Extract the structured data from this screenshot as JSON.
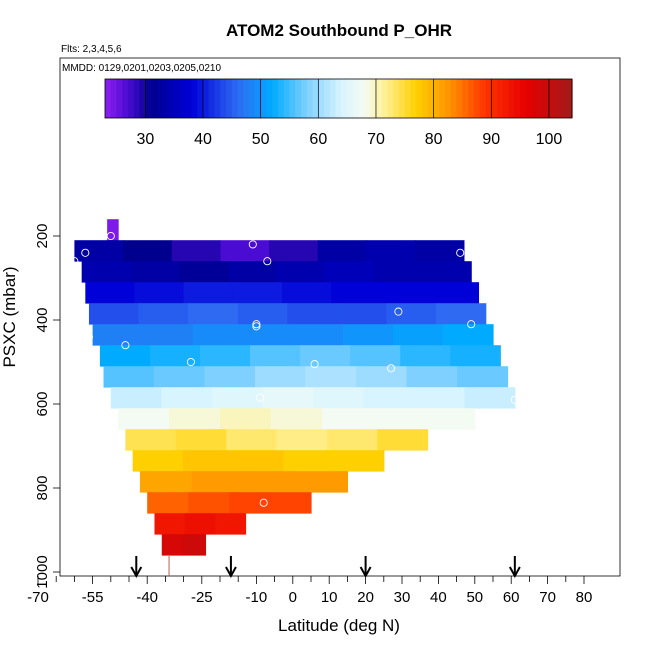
{
  "chart_data": {
    "type": "heatmap",
    "title": "ATOM2 Southbound P_OHR",
    "flights_note": "Flts: 2,3,4,5,6",
    "dates_note": "MMDD: 0129,0201,0203,0205,0210",
    "xlabel": "Latitude (deg N)",
    "ylabel": "PSXC (mbar)",
    "xlim": [
      -70,
      80
    ],
    "ylim": [
      1000,
      150
    ],
    "y_reversed": true,
    "x_ticks": [
      -70,
      -55,
      -40,
      -25,
      -10,
      0,
      10,
      20,
      30,
      40,
      50,
      60,
      70,
      80
    ],
    "x_tick_labels": [
      "-70",
      "-55",
      "-40",
      "-25",
      "-10",
      "0",
      "10",
      "20",
      "30",
      "40",
      "50",
      "60",
      "70",
      "80"
    ],
    "y_ticks": [
      200,
      400,
      600,
      800,
      1000
    ],
    "y_tick_labels": [
      "200",
      "400",
      "600",
      "800",
      "1000"
    ],
    "colorbar": {
      "range": [
        23,
        104
      ],
      "ticks": [
        30,
        40,
        50,
        60,
        70,
        80,
        90,
        100
      ],
      "tick_labels": [
        "30",
        "40",
        "50",
        "60",
        "70",
        "80",
        "90",
        "100"
      ],
      "stops": [
        {
          "v": 23,
          "c": "#8f1ff0"
        },
        {
          "v": 27,
          "c": "#4a0cd2"
        },
        {
          "v": 31,
          "c": "#00008f"
        },
        {
          "v": 38,
          "c": "#0000d8"
        },
        {
          "v": 46,
          "c": "#2e6bf2"
        },
        {
          "v": 52,
          "c": "#00aaff"
        },
        {
          "v": 58,
          "c": "#7fd0ff"
        },
        {
          "v": 64,
          "c": "#d8f4ff"
        },
        {
          "v": 68,
          "c": "#f4fbf2"
        },
        {
          "v": 72,
          "c": "#ffee88"
        },
        {
          "v": 77,
          "c": "#ffd000"
        },
        {
          "v": 83,
          "c": "#ff9000"
        },
        {
          "v": 89,
          "c": "#ff3300"
        },
        {
          "v": 96,
          "c": "#e60000"
        },
        {
          "v": 104,
          "c": "#a31a1a"
        }
      ]
    },
    "bands": [
      {
        "p_top": 160,
        "p_bot": 210,
        "lat_min": -51,
        "lat_max": -48,
        "values": [
          24
        ]
      },
      {
        "p_top": 210,
        "p_bot": 260,
        "lat_min": -60,
        "lat_max": 47,
        "values": [
          33,
          31,
          29,
          27,
          29,
          33,
          34,
          33
        ]
      },
      {
        "p_top": 260,
        "p_bot": 310,
        "lat_min": -58,
        "lat_max": 49,
        "values": [
          34,
          33,
          32,
          33,
          34,
          35,
          34,
          34
        ]
      },
      {
        "p_top": 310,
        "p_bot": 360,
        "lat_min": -57,
        "lat_max": 51,
        "values": [
          38,
          39,
          40,
          40,
          39,
          38,
          38,
          38
        ]
      },
      {
        "p_top": 360,
        "p_bot": 410,
        "lat_min": -56,
        "lat_max": 53,
        "values": [
          44,
          45,
          46,
          45,
          44,
          44,
          45,
          46
        ]
      },
      {
        "p_top": 410,
        "p_bot": 460,
        "lat_min": -55,
        "lat_max": 55,
        "values": [
          48,
          48,
          49,
          49,
          49,
          50,
          51,
          52
        ]
      },
      {
        "p_top": 460,
        "p_bot": 510,
        "lat_min": -53,
        "lat_max": 57,
        "values": [
          52,
          53,
          54,
          56,
          57,
          56,
          54,
          53
        ]
      },
      {
        "p_top": 510,
        "p_bot": 560,
        "lat_min": -52,
        "lat_max": 59,
        "values": [
          56,
          57,
          58,
          60,
          61,
          60,
          58,
          57
        ]
      },
      {
        "p_top": 560,
        "p_bot": 610,
        "lat_min": -50,
        "lat_max": 61,
        "values": [
          63,
          64,
          65,
          66,
          65,
          64,
          64,
          63
        ]
      },
      {
        "p_top": 610,
        "p_bot": 660,
        "lat_min": -48,
        "lat_max": 50,
        "values": [
          68,
          69,
          70,
          69,
          68,
          68,
          68
        ]
      },
      {
        "p_top": 660,
        "p_bot": 710,
        "lat_min": -46,
        "lat_max": 37,
        "values": [
          74,
          75,
          73,
          72,
          73,
          75
        ]
      },
      {
        "p_top": 710,
        "p_bot": 760,
        "lat_min": -44,
        "lat_max": 25,
        "values": [
          77,
          78,
          78,
          77,
          77
        ]
      },
      {
        "p_top": 760,
        "p_bot": 810,
        "lat_min": -42,
        "lat_max": 15,
        "values": [
          81,
          82,
          82,
          82
        ]
      },
      {
        "p_top": 810,
        "p_bot": 860,
        "lat_min": -40,
        "lat_max": 5,
        "values": [
          86,
          87,
          88,
          88
        ]
      },
      {
        "p_top": 860,
        "p_bot": 910,
        "lat_min": -38,
        "lat_max": -13,
        "values": [
          93,
          94,
          93
        ]
      },
      {
        "p_top": 910,
        "p_bot": 960,
        "lat_min": -36,
        "lat_max": -24,
        "values": [
          98,
          99
        ]
      }
    ],
    "circles": [
      [
        -52,
        200
      ],
      [
        -50,
        200
      ],
      [
        -57,
        240
      ],
      [
        -11,
        220
      ],
      [
        -7,
        260
      ],
      [
        -60,
        260
      ],
      [
        46,
        240
      ],
      [
        29,
        380
      ],
      [
        49,
        410
      ],
      [
        -10,
        410
      ],
      [
        -10,
        415
      ],
      [
        -56,
        440
      ],
      [
        -46,
        460
      ],
      [
        -28,
        500
      ],
      [
        6,
        505
      ],
      [
        27,
        515
      ],
      [
        -9,
        585
      ],
      [
        61,
        590
      ],
      [
        -8,
        835
      ]
    ],
    "arrows": [
      -43,
      -17,
      20,
      61
    ],
    "rug_lat": -34
  }
}
